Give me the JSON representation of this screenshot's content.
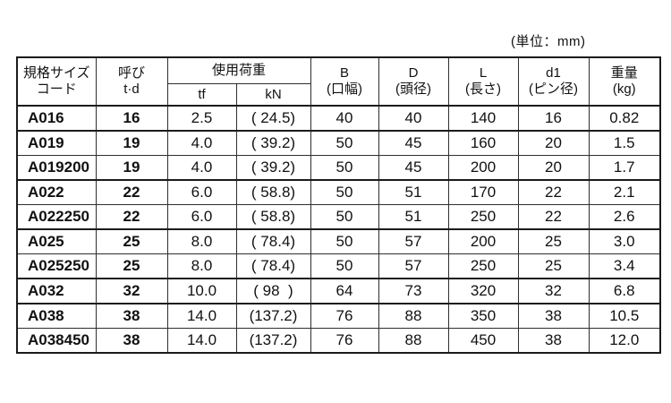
{
  "unit_label": "(単位：mm)",
  "table": {
    "headers": {
      "code_line1": "規格サイズ",
      "code_line2": "コード",
      "nominal_line1": "呼び",
      "nominal_line2": "t·d",
      "load_group": "使用荷重",
      "load_tf": "tf",
      "load_kn": "kN",
      "b_line1": "B",
      "b_line2": "(口幅)",
      "d_line1": "D",
      "d_line2": "(頭径)",
      "l_line1": "L",
      "l_line2": "(長さ)",
      "d1_line1": "d1",
      "d1_line2": "(ピン径)",
      "weight_line1": "重量",
      "weight_line2": "(kg)"
    },
    "rows": [
      {
        "code": "A016",
        "td": "16",
        "tf": "2.5",
        "kn": "( 24.5)",
        "b": "40",
        "d": "40",
        "l": "140",
        "d1": "16",
        "kg": "0.82",
        "group_end": true
      },
      {
        "code": "A019",
        "td": "19",
        "tf": "4.0",
        "kn": "( 39.2)",
        "b": "50",
        "d": "45",
        "l": "160",
        "d1": "20",
        "kg": "1.5",
        "group_end": false
      },
      {
        "code": "A019200",
        "td": "19",
        "tf": "4.0",
        "kn": "( 39.2)",
        "b": "50",
        "d": "45",
        "l": "200",
        "d1": "20",
        "kg": "1.7",
        "group_end": true
      },
      {
        "code": "A022",
        "td": "22",
        "tf": "6.0",
        "kn": "( 58.8)",
        "b": "50",
        "d": "51",
        "l": "170",
        "d1": "22",
        "kg": "2.1",
        "group_end": false
      },
      {
        "code": "A022250",
        "td": "22",
        "tf": "6.0",
        "kn": "( 58.8)",
        "b": "50",
        "d": "51",
        "l": "250",
        "d1": "22",
        "kg": "2.6",
        "group_end": true
      },
      {
        "code": "A025",
        "td": "25",
        "tf": "8.0",
        "kn": "( 78.4)",
        "b": "50",
        "d": "57",
        "l": "200",
        "d1": "25",
        "kg": "3.0",
        "group_end": false
      },
      {
        "code": "A025250",
        "td": "25",
        "tf": "8.0",
        "kn": "( 78.4)",
        "b": "50",
        "d": "57",
        "l": "250",
        "d1": "25",
        "kg": "3.4",
        "group_end": true
      },
      {
        "code": "A032",
        "td": "32",
        "tf": "10.0",
        "kn": "( 98  )",
        "b": "64",
        "d": "73",
        "l": "320",
        "d1": "32",
        "kg": "6.8",
        "group_end": true
      },
      {
        "code": "A038",
        "td": "38",
        "tf": "14.0",
        "kn": "(137.2)",
        "b": "76",
        "d": "88",
        "l": "350",
        "d1": "38",
        "kg": "10.5",
        "group_end": false
      },
      {
        "code": "A038450",
        "td": "38",
        "tf": "14.0",
        "kn": "(137.2)",
        "b": "76",
        "d": "88",
        "l": "450",
        "d1": "38",
        "kg": "12.0",
        "group_end": false
      }
    ]
  }
}
